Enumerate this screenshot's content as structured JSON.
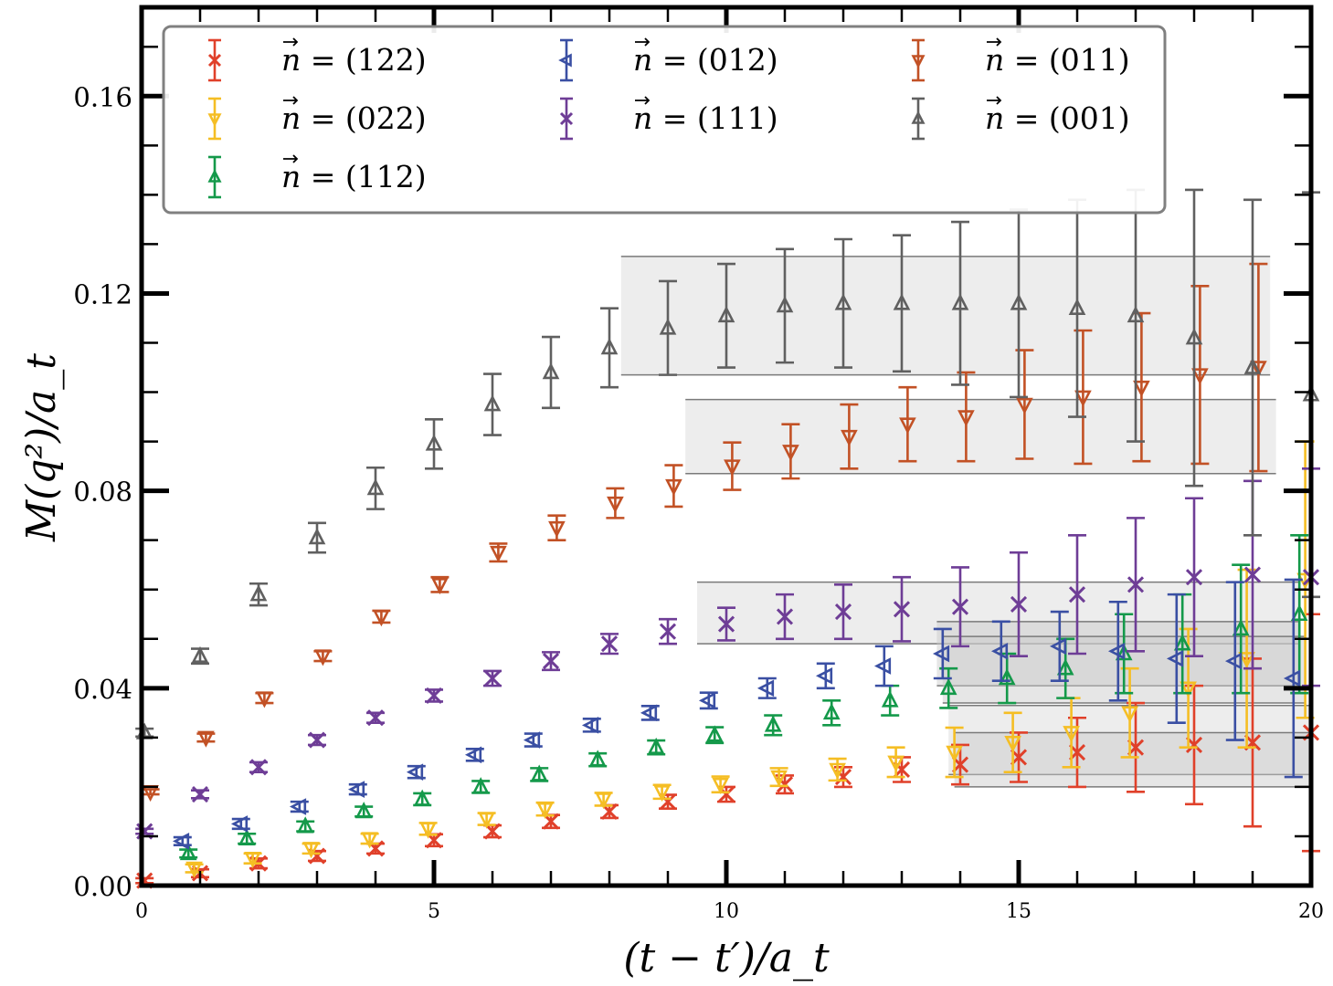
{
  "chart_data": {
    "type": "scatter",
    "title": "",
    "xlabel": "(t − t′)/a_t",
    "ylabel": "M(q²)/a_t",
    "xlim": [
      0,
      20
    ],
    "ylim": [
      0,
      0.178
    ],
    "xticks": [
      0,
      5,
      10,
      15,
      20
    ],
    "xtick_labels": [
      "0",
      "5",
      "10",
      "15",
      "20"
    ],
    "yticks": [
      0.0,
      0.04,
      0.08,
      0.12,
      0.16
    ],
    "ytick_labels": [
      "0.00",
      "0.04",
      "0.08",
      "0.12",
      "0.16"
    ],
    "grid": false,
    "legend_position": "top",
    "legend_columns": 3,
    "series": [
      {
        "name": "n⃗ = (122)",
        "label_vec": "n",
        "label_rest": " = (122)",
        "color": "#e0402a",
        "marker": "x",
        "x_offset": 0.0,
        "x": [
          0,
          1,
          2,
          3,
          4,
          5,
          6,
          7,
          8,
          9,
          10,
          11,
          12,
          13,
          14,
          15,
          16,
          17,
          18,
          19,
          20
        ],
        "y": [
          0.001,
          0.0025,
          0.0045,
          0.006,
          0.0075,
          0.0092,
          0.011,
          0.013,
          0.015,
          0.017,
          0.0185,
          0.0205,
          0.022,
          0.0235,
          0.0245,
          0.026,
          0.027,
          0.028,
          0.0285,
          0.029,
          0.031
        ],
        "err": [
          0.0005,
          0.0008,
          0.001,
          0.001,
          0.001,
          0.0012,
          0.0012,
          0.0013,
          0.0013,
          0.0014,
          0.0015,
          0.0018,
          0.002,
          0.0025,
          0.004,
          0.005,
          0.007,
          0.009,
          0.012,
          0.017,
          0.024
        ]
      },
      {
        "name": "n⃗ = (022)",
        "label_vec": "n",
        "label_rest": " = (022)",
        "color": "#f5be24",
        "marker": "v",
        "x_offset": -0.1,
        "x": [
          0,
          1,
          2,
          3,
          4,
          5,
          6,
          7,
          8,
          9,
          10,
          11,
          12,
          13,
          14,
          15,
          16,
          17,
          18,
          19,
          20
        ],
        "y": [
          0.002,
          0.0035,
          0.0055,
          0.0075,
          0.0095,
          0.0115,
          0.0135,
          0.0155,
          0.0175,
          0.019,
          0.0205,
          0.022,
          0.0235,
          0.025,
          0.027,
          0.029,
          0.031,
          0.035,
          0.04,
          0.046,
          0.062
        ],
        "err": [
          0.0005,
          0.0008,
          0.001,
          0.001,
          0.001,
          0.0012,
          0.0012,
          0.0013,
          0.0013,
          0.0014,
          0.0016,
          0.0018,
          0.0022,
          0.003,
          0.005,
          0.006,
          0.007,
          0.009,
          0.012,
          0.018,
          0.028
        ]
      },
      {
        "name": "n⃗ = (112)",
        "label_vec": "n",
        "label_rest": " = (112)",
        "color": "#14994a",
        "marker": "^",
        "x_offset": -0.2,
        "x": [
          0,
          1,
          2,
          3,
          4,
          5,
          6,
          7,
          8,
          9,
          10,
          11,
          12,
          13,
          14,
          15,
          16,
          17,
          18,
          19,
          20
        ],
        "y": [
          0.003,
          0.0065,
          0.0095,
          0.012,
          0.015,
          0.0175,
          0.02,
          0.0225,
          0.0255,
          0.028,
          0.0305,
          0.0325,
          0.035,
          0.0375,
          0.04,
          0.042,
          0.044,
          0.047,
          0.049,
          0.052,
          0.055
        ],
        "err": [
          0.0005,
          0.0008,
          0.001,
          0.001,
          0.001,
          0.0012,
          0.0012,
          0.0013,
          0.0013,
          0.0014,
          0.0016,
          0.002,
          0.0025,
          0.003,
          0.004,
          0.005,
          0.006,
          0.008,
          0.01,
          0.013,
          0.016
        ]
      },
      {
        "name": "n⃗ = (012)",
        "label_vec": "n",
        "label_rest": " = (012)",
        "color": "#3a4fa3",
        "marker": "<",
        "x_offset": -0.3,
        "x": [
          0,
          1,
          2,
          3,
          4,
          5,
          6,
          7,
          8,
          9,
          10,
          11,
          12,
          13,
          14,
          15,
          16,
          17,
          18,
          19,
          20
        ],
        "y": [
          0.005,
          0.009,
          0.0125,
          0.016,
          0.0195,
          0.023,
          0.0265,
          0.0295,
          0.0325,
          0.035,
          0.0375,
          0.04,
          0.0425,
          0.0445,
          0.047,
          0.0475,
          0.0485,
          0.0475,
          0.046,
          0.0455,
          0.042
        ],
        "err": [
          0.0005,
          0.0008,
          0.001,
          0.001,
          0.001,
          0.0012,
          0.0012,
          0.0013,
          0.0013,
          0.0014,
          0.0016,
          0.002,
          0.0025,
          0.004,
          0.005,
          0.006,
          0.007,
          0.01,
          0.013,
          0.016,
          0.02
        ]
      },
      {
        "name": "n⃗ = (111)",
        "label_vec": "n",
        "label_rest": " = (111)",
        "color": "#6e3d96",
        "marker": "x",
        "x_offset": 0.0,
        "x": [
          0,
          1,
          2,
          3,
          4,
          5,
          6,
          7,
          8,
          9,
          10,
          11,
          12,
          13,
          14,
          15,
          16,
          17,
          18,
          19,
          20
        ],
        "y": [
          0.011,
          0.0185,
          0.024,
          0.0295,
          0.034,
          0.0385,
          0.042,
          0.0455,
          0.049,
          0.0515,
          0.053,
          0.0545,
          0.0555,
          0.056,
          0.0565,
          0.057,
          0.059,
          0.061,
          0.0625,
          0.063,
          0.0625
        ],
        "err": [
          0.0005,
          0.0008,
          0.001,
          0.001,
          0.001,
          0.0012,
          0.0015,
          0.0018,
          0.002,
          0.0025,
          0.0033,
          0.0045,
          0.0055,
          0.0065,
          0.008,
          0.0105,
          0.012,
          0.0135,
          0.016,
          0.019,
          0.022
        ]
      },
      {
        "name": "n⃗ = (011)",
        "label_vec": "n",
        "label_rest": " = (011)",
        "color": "#c25125",
        "marker": "v",
        "x_offset": 0.1,
        "x": [
          0,
          1,
          2,
          3,
          4,
          5,
          6,
          7,
          8,
          9,
          10,
          11,
          12,
          13,
          14,
          15,
          16,
          17,
          18,
          19,
          20
        ],
        "y": [
          0.019,
          0.03,
          0.038,
          0.0465,
          0.0545,
          0.061,
          0.0675,
          0.0725,
          0.0775,
          0.081,
          0.085,
          0.088,
          0.091,
          0.0935,
          0.095,
          0.0975,
          0.099,
          0.101,
          0.1035,
          0.105,
          0.1065
        ],
        "err": [
          0.0005,
          0.0008,
          0.001,
          0.001,
          0.0012,
          0.0015,
          0.0018,
          0.0025,
          0.003,
          0.0042,
          0.0048,
          0.0055,
          0.0065,
          0.0075,
          0.009,
          0.011,
          0.0135,
          0.015,
          0.018,
          0.021,
          0.025
        ]
      },
      {
        "name": "n⃗ = (001)",
        "label_vec": "n",
        "label_rest": " = (001)",
        "color": "#606060",
        "marker": "^",
        "x_offset": 0.0,
        "x": [
          0,
          1,
          2,
          3,
          4,
          5,
          6,
          7,
          8,
          9,
          10,
          11,
          12,
          13,
          14,
          15,
          16,
          17,
          18,
          19,
          20
        ],
        "y": [
          0.031,
          0.0465,
          0.059,
          0.0705,
          0.0805,
          0.0895,
          0.0975,
          0.104,
          0.109,
          0.113,
          0.1155,
          0.1175,
          0.118,
          0.118,
          0.118,
          0.118,
          0.117,
          0.1155,
          0.111,
          0.105,
          0.0995
        ],
        "err": [
          0.0008,
          0.0015,
          0.0022,
          0.003,
          0.0042,
          0.005,
          0.0062,
          0.0072,
          0.008,
          0.0095,
          0.0105,
          0.0115,
          0.013,
          0.0138,
          0.0165,
          0.019,
          0.022,
          0.0255,
          0.03,
          0.034,
          0.041
        ]
      }
    ],
    "fit_bands": [
      {
        "series": "n⃗ = (001)",
        "x_range": [
          8.2,
          19.3
        ],
        "y_range": [
          0.1035,
          0.1275
        ],
        "color": "#d6d6d6"
      },
      {
        "series": "n⃗ = (011)",
        "x_range": [
          9.3,
          19.4
        ],
        "y_range": [
          0.0835,
          0.0985
        ],
        "color": "#d6d6d6"
      },
      {
        "series": "n⃗ = (111)",
        "x_range": [
          9.5,
          19.8
        ],
        "y_range": [
          0.049,
          0.0615
        ],
        "color": "#d6d6d6"
      },
      {
        "series": "n⃗ = (012)",
        "x_range": [
          13.6,
          19.8
        ],
        "y_range": [
          0.0405,
          0.0535
        ],
        "color": "#c8c8c8"
      },
      {
        "series": "n⃗ = (112)",
        "x_range": [
          13.7,
          19.9
        ],
        "y_range": [
          0.037,
          0.0505
        ],
        "color": "#c8c8c8"
      },
      {
        "series": "n⃗ = (022)",
        "x_range": [
          13.8,
          20.0
        ],
        "y_range": [
          0.0225,
          0.0365
        ],
        "color": "#d6d6d6"
      },
      {
        "series": "n⃗ = (122)",
        "x_range": [
          13.9,
          20.0
        ],
        "y_range": [
          0.02,
          0.031
        ],
        "color": "#c8c8c8"
      }
    ]
  }
}
